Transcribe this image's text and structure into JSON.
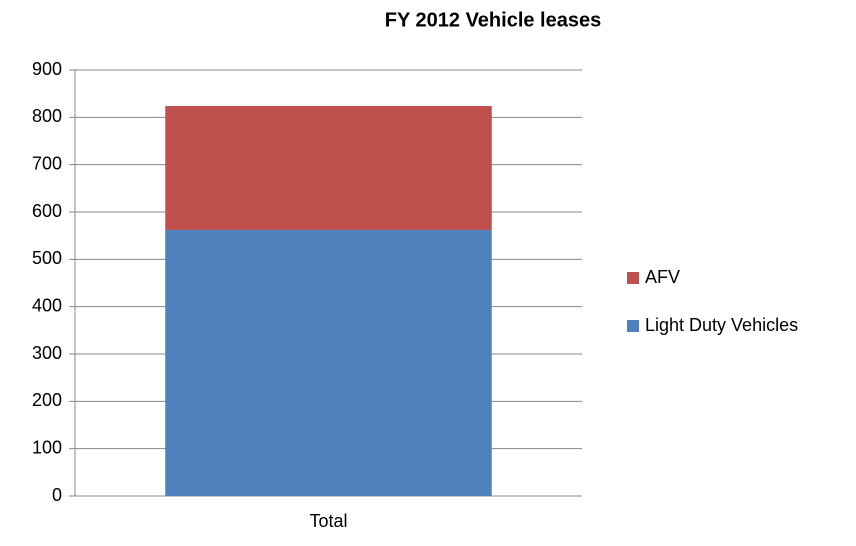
{
  "chart_data": {
    "type": "stacked-bar",
    "title": "FY 2012 Vehicle leases",
    "categories": [
      "Total"
    ],
    "series": [
      {
        "name": "Light Duty Vehicles",
        "color": "#4f81bd",
        "values": [
          562
        ]
      },
      {
        "name": "AFV",
        "color": "#c0504d",
        "values": [
          262
        ]
      }
    ],
    "ylim": [
      0,
      900
    ],
    "yticks": [
      0,
      100,
      200,
      300,
      400,
      500,
      600,
      700,
      800,
      900
    ],
    "grid": true,
    "legend": "right"
  }
}
